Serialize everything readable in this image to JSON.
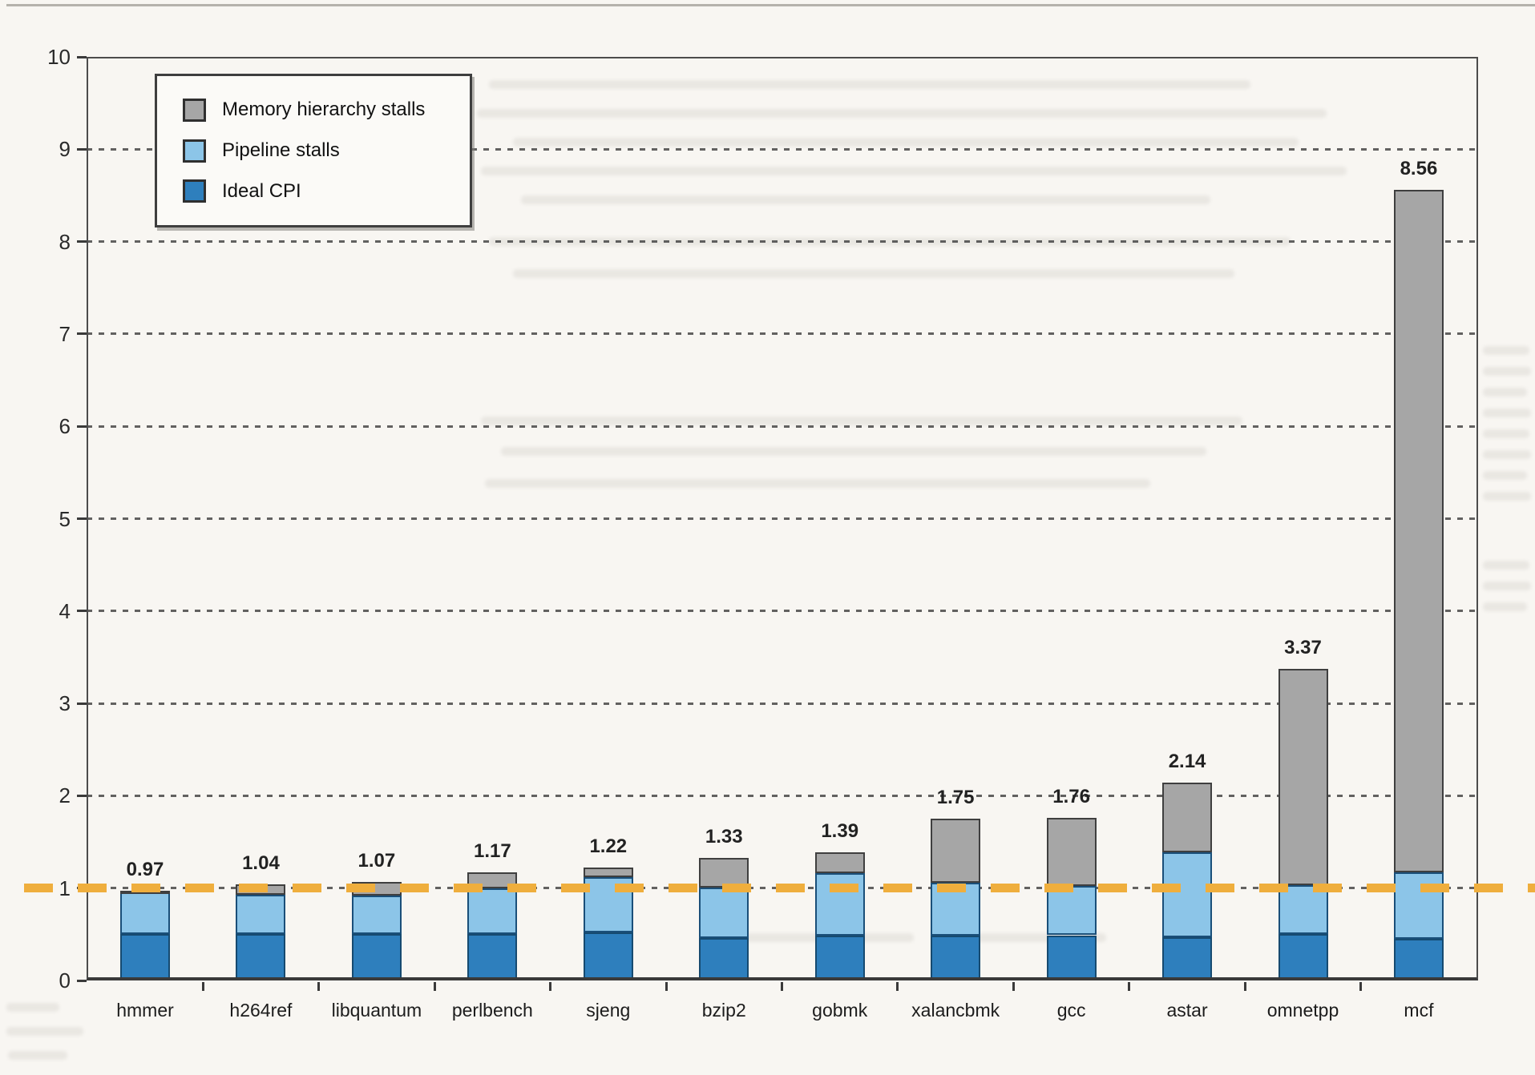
{
  "legend": {
    "items": [
      {
        "label": "Memory hierarchy stalls",
        "color": "#a6a6a6",
        "border": "#3f3f3f"
      },
      {
        "label": "Pipeline stalls",
        "color": "#8cc5e8",
        "border": "#1a4f79"
      },
      {
        "label": "Ideal CPI",
        "color": "#2e7fbd",
        "border": "#164a70"
      }
    ]
  },
  "chart_data": {
    "type": "bar",
    "stacked": true,
    "title": "",
    "xlabel": "",
    "ylabel": "",
    "ylim": [
      0,
      10
    ],
    "yticks": [
      0,
      1,
      2,
      3,
      4,
      5,
      6,
      7,
      8,
      9,
      10
    ],
    "grid": "horizontal dashed lines at integers 1-9",
    "legend_position": "top-left inside plot",
    "categories": [
      "hmmer",
      "h264ref",
      "libquantum",
      "perlbench",
      "sjeng",
      "bzip2",
      "gobmk",
      "xalancbmk",
      "gcc",
      "astar",
      "omnetpp",
      "mcf"
    ],
    "series": [
      {
        "name": "Ideal CPI",
        "color": "#2e7fbd",
        "border": "#164a70",
        "values": [
          0.5,
          0.5,
          0.5,
          0.5,
          0.52,
          0.46,
          0.49,
          0.49,
          0.49,
          0.47,
          0.5,
          0.45
        ]
      },
      {
        "name": "Pipeline stalls",
        "color": "#8cc5e8",
        "border": "#1a4f79",
        "values": [
          0.45,
          0.43,
          0.42,
          0.5,
          0.6,
          0.55,
          0.67,
          0.57,
          0.53,
          0.92,
          0.53,
          0.72
        ]
      },
      {
        "name": "Memory hierarchy stalls",
        "color": "#a6a6a6",
        "border": "#3f3f3f",
        "values": [
          0.02,
          0.11,
          0.15,
          0.17,
          0.1,
          0.32,
          0.23,
          0.69,
          0.74,
          0.75,
          2.34,
          7.39
        ]
      }
    ],
    "totals": [
      0.97,
      1.04,
      1.07,
      1.17,
      1.22,
      1.33,
      1.39,
      1.75,
      1.76,
      2.14,
      3.37,
      8.56
    ],
    "total_labels": [
      "0.97",
      "1.04",
      "1.07",
      "1.17",
      "1.22",
      "1.33",
      "1.39",
      "1.75",
      "1.76",
      "2.14",
      "3.37",
      "8.56"
    ],
    "reference_line": {
      "value": 1,
      "style": "dashed",
      "color": "#efae3d"
    }
  }
}
